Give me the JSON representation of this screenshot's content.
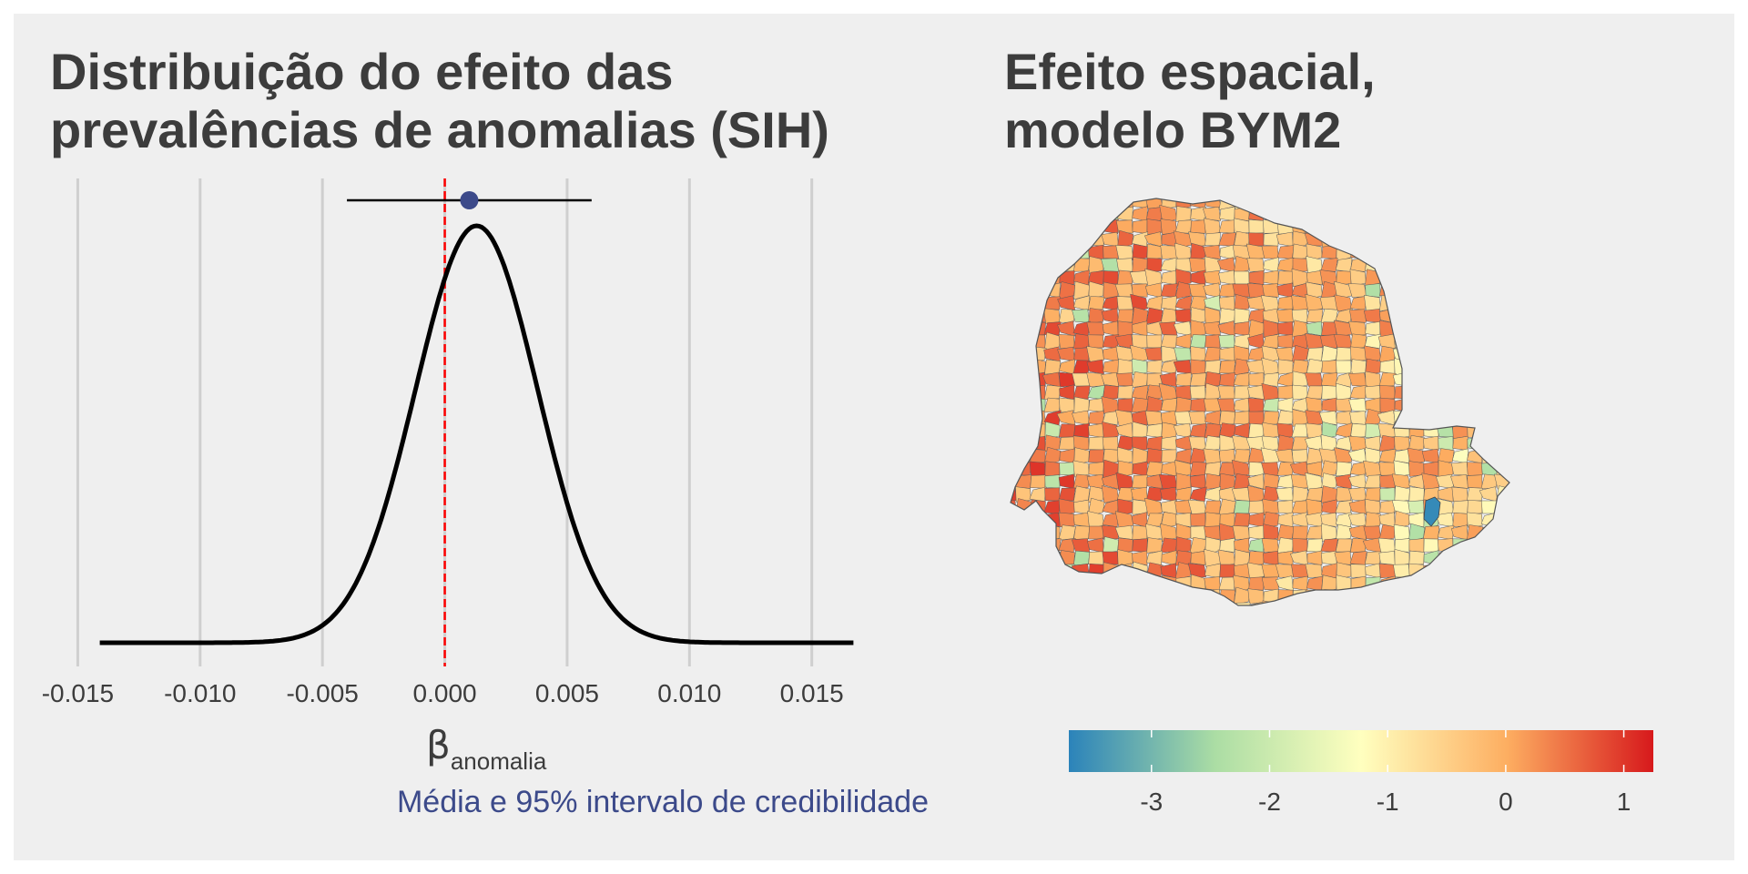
{
  "colors": {
    "background": "#efefef",
    "title": "#3c3c3c",
    "density_line": "#000000",
    "zero_line": "#ff0000",
    "point": "#3c4a8a",
    "caption": "#3c4a8a",
    "grid": "#cfcfcf"
  },
  "chart_data": [
    {
      "type": "line",
      "title_lines": [
        "Distribuição do efeito das",
        "prevalências de anomalias (SIH)"
      ],
      "xlabel_symbol": "β",
      "xlabel_subscript": "anomalia",
      "caption": "Média e 95% intervalo de credibilidade",
      "xlim": [
        -0.0155,
        0.0165
      ],
      "x_ticks": [
        -0.015,
        -0.01,
        -0.005,
        0.0,
        0.005,
        0.01,
        0.015
      ],
      "x_tick_labels": [
        "-0.015",
        "-0.010",
        "-0.005",
        "0.000",
        "0.005",
        "0.010",
        "0.015"
      ],
      "density": {
        "mean": 0.0013,
        "sd": 0.0025,
        "x_min": -0.0141,
        "x_max": 0.0167
      },
      "point_estimate": 0.001,
      "credible_interval_95": [
        -0.004,
        0.006
      ],
      "reference_line_x": 0,
      "grid": true,
      "ylabel": ""
    },
    {
      "type": "choropleth",
      "title_lines": [
        "Efeito espacial,",
        "modelo BYM2"
      ],
      "colorbar": {
        "min": -3.7,
        "max": 1.25,
        "ticks": [
          -3,
          -2,
          -1,
          0,
          1
        ],
        "tick_labels": [
          "-3",
          "-2",
          "-1",
          "0",
          "1"
        ],
        "palette": [
          "#2b83ba",
          "#abdda4",
          "#ffffbf",
          "#fdae61",
          "#d7191c"
        ]
      }
    }
  ]
}
